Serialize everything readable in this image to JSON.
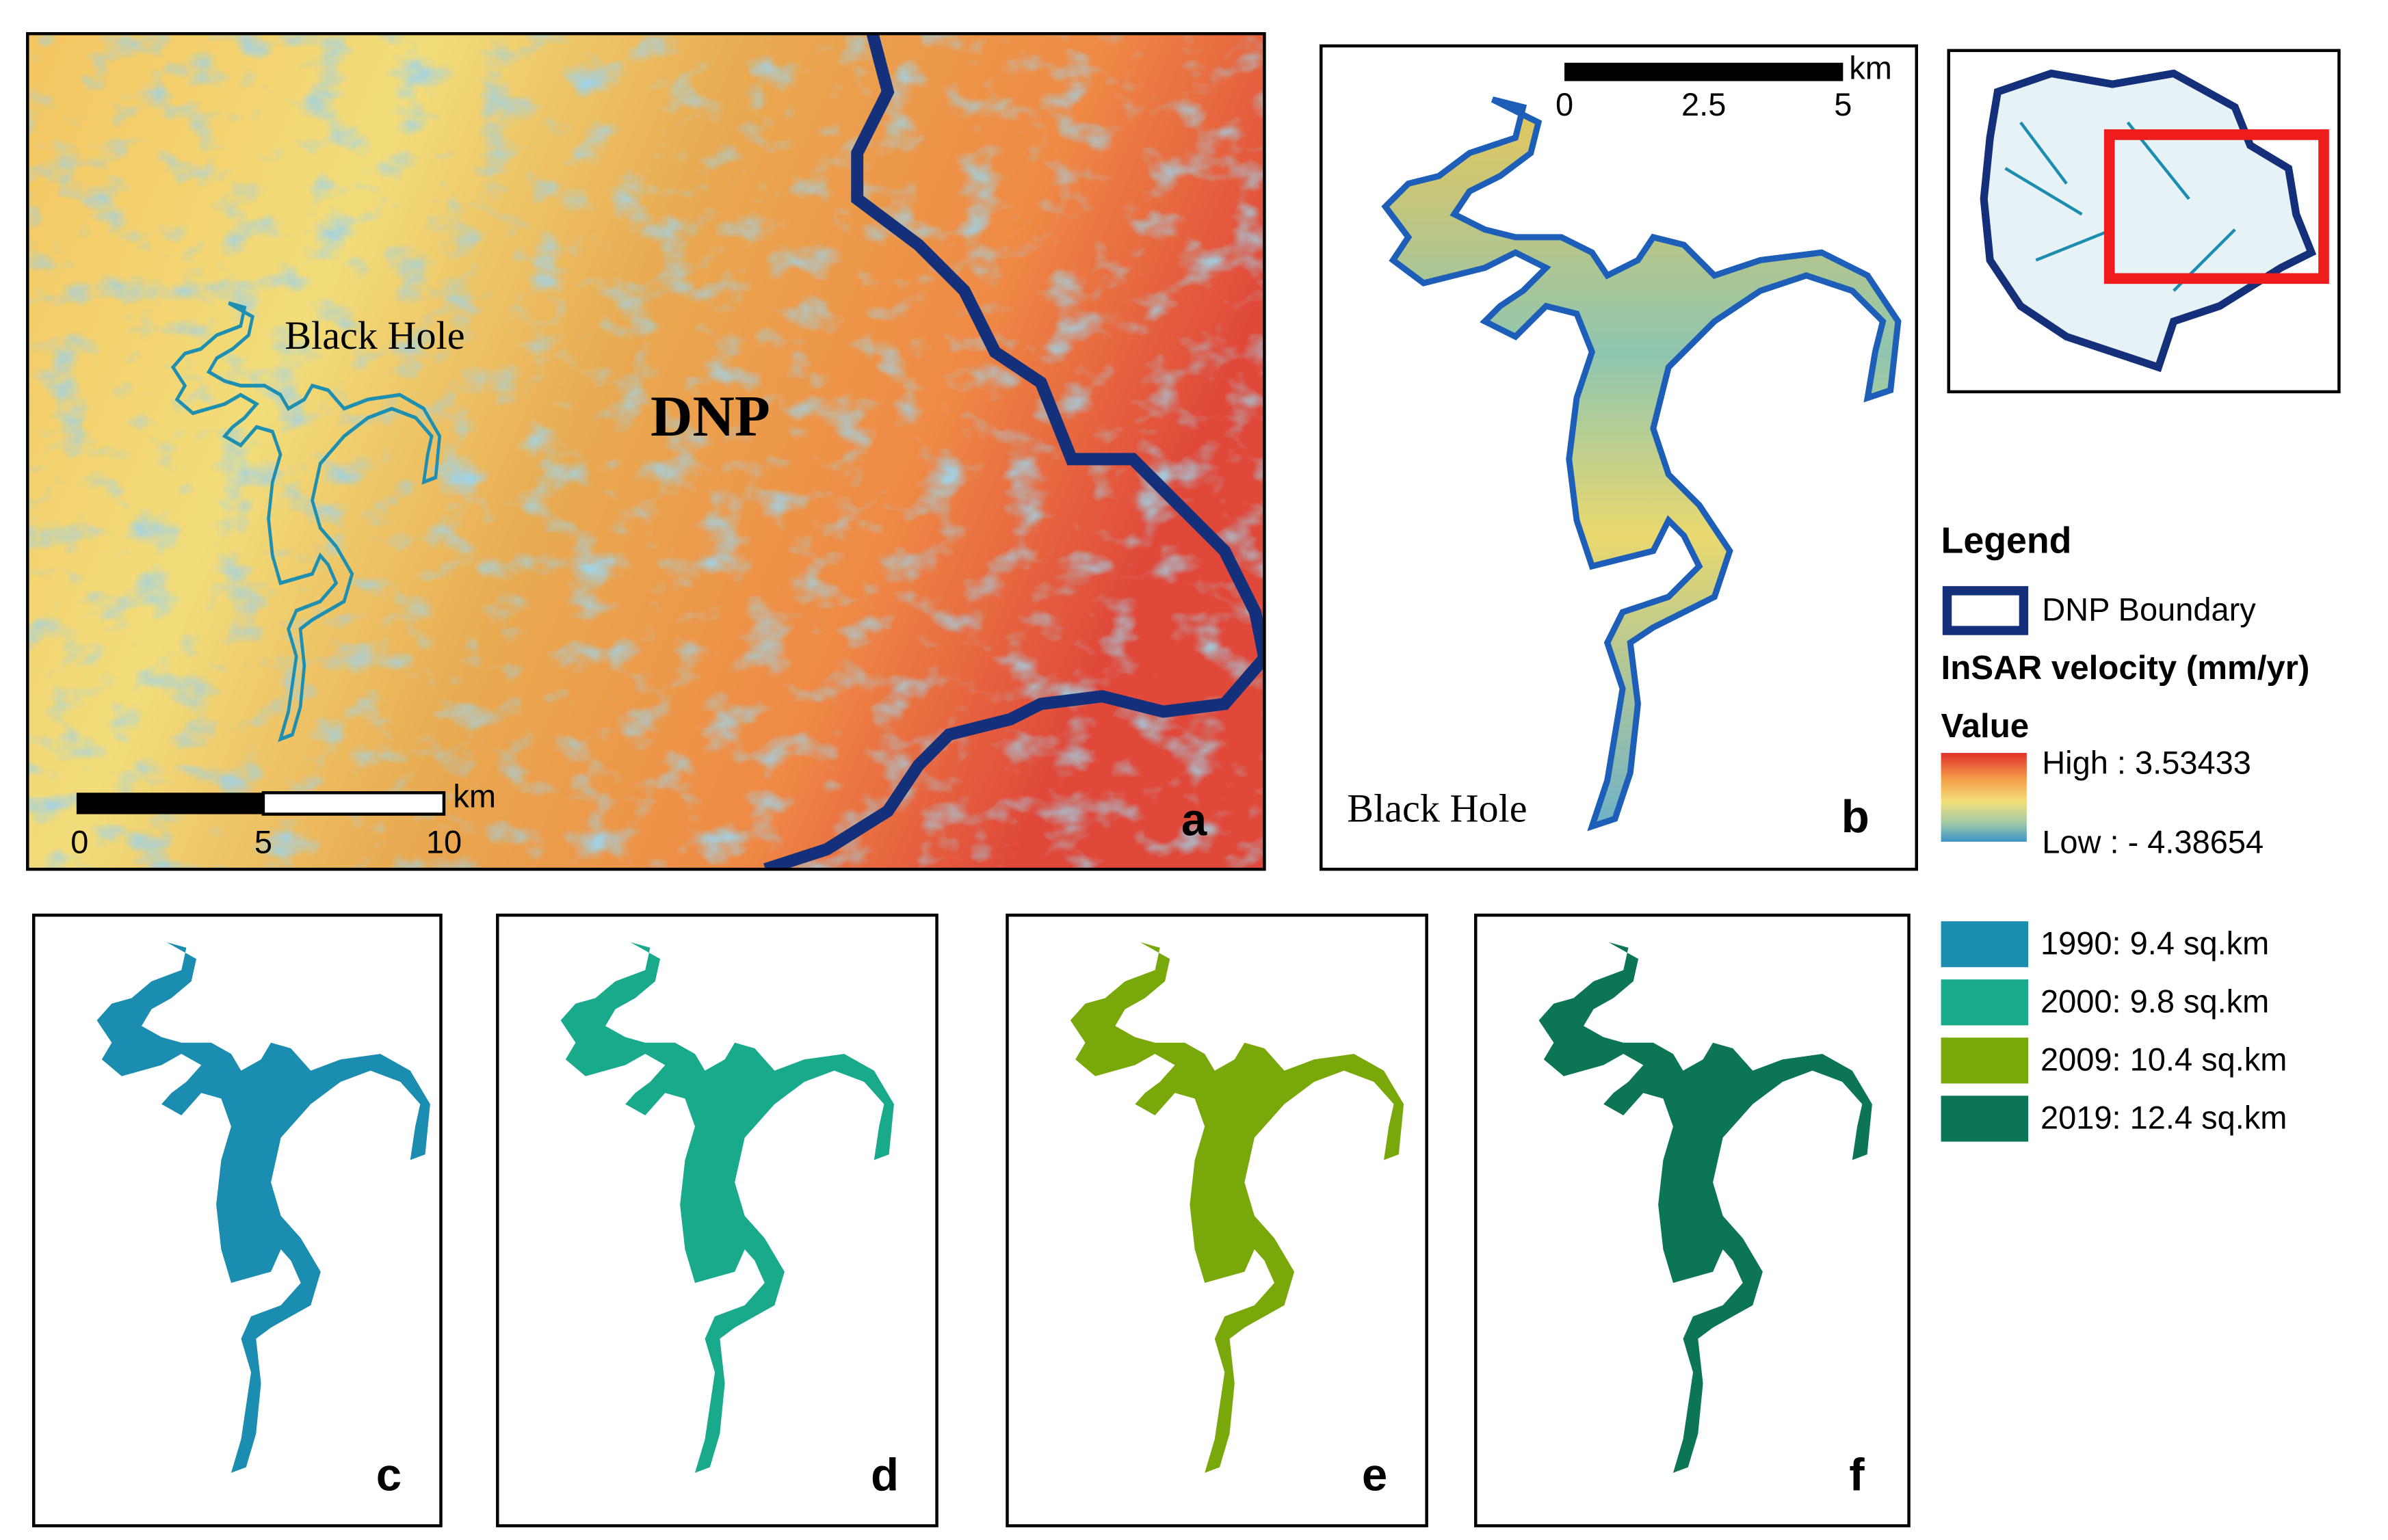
{
  "panel_a": {
    "label": "a",
    "place_label": "Black Hole",
    "park_label": "DNP",
    "scale_bar": {
      "unit": "km",
      "ticks": [
        "0",
        "5",
        "10"
      ]
    }
  },
  "panel_b": {
    "label": "b",
    "place_label": "Black Hole",
    "scale_bar": {
      "unit": "km",
      "ticks": [
        "0",
        "2.5",
        "5"
      ]
    }
  },
  "legend": {
    "title": "Legend",
    "boundary": "DNP Boundary",
    "velocity_title": "InSAR velocity (mm/yr)",
    "value_title": "Value",
    "high": "High : 3.53433",
    "low": "Low : - 4.38654"
  },
  "extent_panels": [
    {
      "label": "c",
      "legend": "1990: 9.4 sq.km",
      "color": "#1a8db0"
    },
    {
      "label": "d",
      "legend": "2000: 9.8 sq.km",
      "color": "#18aa8b"
    },
    {
      "label": "e",
      "legend": "2009: 10.4 sq.km",
      "color": "#78a80a"
    },
    {
      "label": "f",
      "legend": "2019: 12.4 sq.km",
      "color": "#0b7555"
    }
  ]
}
